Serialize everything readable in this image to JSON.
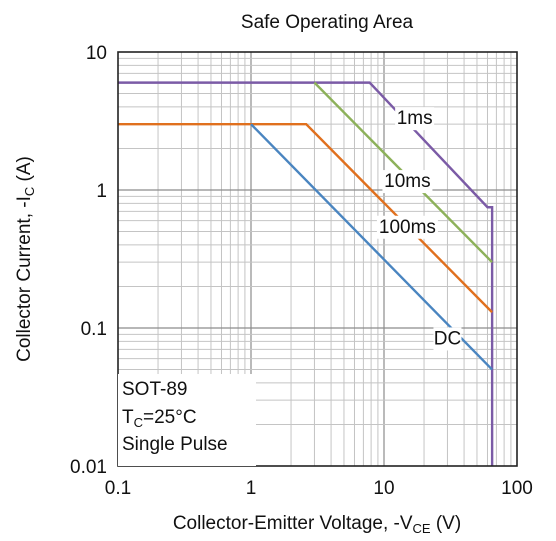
{
  "chart_data": {
    "type": "line",
    "title": "Safe Operating Area",
    "xlabel": {
      "prefix": "Collector-Emitter Voltage, -V",
      "sub": "CE",
      "suffix": " (V)"
    },
    "ylabel": {
      "prefix": "Collector Current, -I",
      "sub": "C",
      "suffix": " (A)"
    },
    "x_scale": "log",
    "y_scale": "log",
    "xlim": [
      0.1,
      100
    ],
    "ylim": [
      0.01,
      10
    ],
    "grid": true,
    "x_ticks": [
      {
        "value": 0.1,
        "label": "0.1"
      },
      {
        "value": 1,
        "label": "1"
      },
      {
        "value": 10,
        "label": "10"
      },
      {
        "value": 100,
        "label": "100"
      }
    ],
    "y_ticks": [
      {
        "value": 0.01,
        "label": "0.01"
      },
      {
        "value": 0.1,
        "label": "0.1"
      },
      {
        "value": 1,
        "label": "1"
      },
      {
        "value": 10,
        "label": "10"
      }
    ],
    "series": [
      {
        "name": "1ms",
        "color": "#7b5ba6",
        "x": [
          0.1,
          7.8,
          60,
          65,
          65
        ],
        "y": [
          6,
          6,
          0.75,
          0.75,
          0.01
        ]
      },
      {
        "name": "10ms",
        "color": "#8db15a",
        "x": [
          3.0,
          65
        ],
        "y": [
          6,
          0.3
        ]
      },
      {
        "name": "100ms",
        "color": "#e0701e",
        "x": [
          0.1,
          2.6,
          65
        ],
        "y": [
          3,
          3,
          0.13
        ]
      },
      {
        "name": "DC",
        "color": "#4a85c0",
        "x": [
          1.0,
          65
        ],
        "y": [
          3,
          0.05
        ]
      }
    ],
    "series_labels": [
      {
        "text": "1ms",
        "x": 17,
        "y": 3.0
      },
      {
        "text": "10ms",
        "x": 15,
        "y": 1.05
      },
      {
        "text": "100ms",
        "x": 15,
        "y": 0.49
      },
      {
        "text": "DC",
        "x": 30,
        "y": 0.076
      }
    ],
    "notes": [
      {
        "text": "SOT-89"
      },
      {
        "prefix": "T",
        "sub": "C",
        "suffix": "=25°C"
      },
      {
        "text": "Single Pulse"
      }
    ]
  }
}
